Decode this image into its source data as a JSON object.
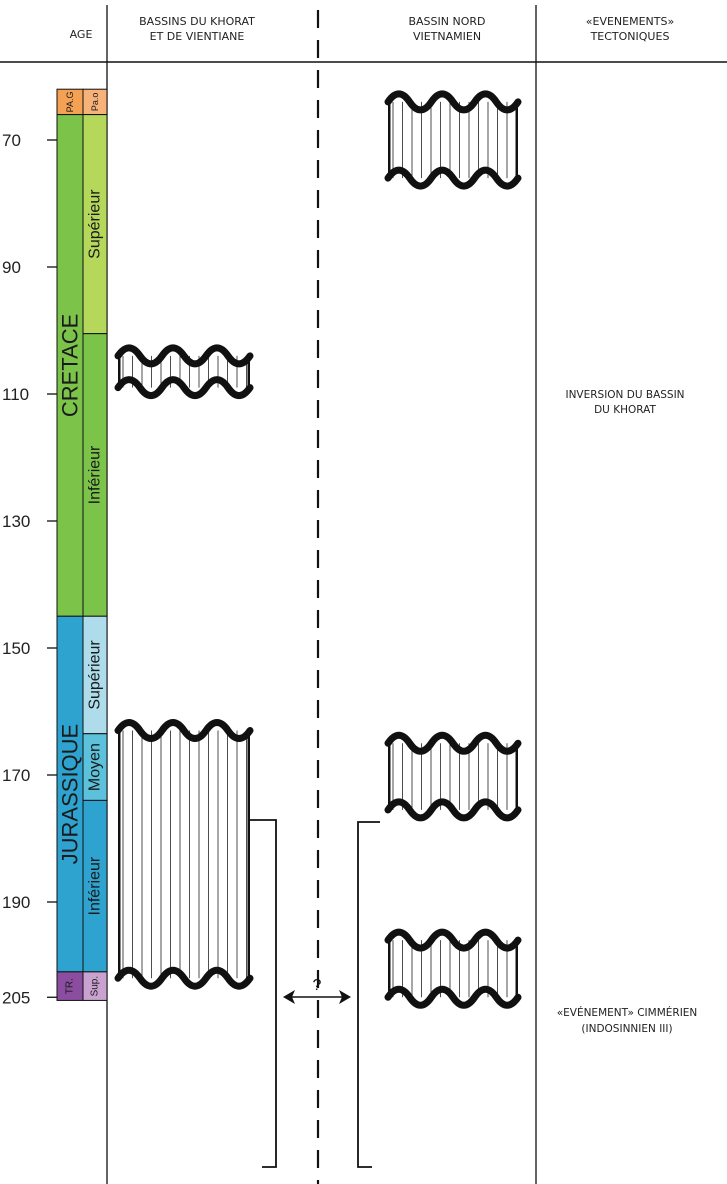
{
  "headers": {
    "age": "AGE",
    "khorat_line1": "BASSINS DU KHORAT",
    "khorat_line2": "ET DE VIENTIANE",
    "nord_line1": "BASSIN NORD",
    "nord_line2": "VIETNAMIEN",
    "events_line1": "«EVENEMENTS»",
    "events_line2": "TECTONIQUES"
  },
  "age_ticks": [
    "70",
    "90",
    "110",
    "130",
    "150",
    "170",
    "190",
    "205"
  ],
  "periods": [
    {
      "label": "PA.G",
      "from": 62,
      "to": 66,
      "color": "#f5a154"
    },
    {
      "label": "CRETACE",
      "from": 66,
      "to": 145,
      "color": "#7cc34a"
    },
    {
      "label": "JURASSIQUE",
      "from": 145,
      "to": 201,
      "color": "#2ea3d0"
    },
    {
      "label": "TR.",
      "from": 201,
      "to": 205.5,
      "color": "#8b4da0"
    }
  ],
  "epochs": [
    {
      "label": "Pa.o",
      "from": 62,
      "to": 66,
      "color": "#f7b27a"
    },
    {
      "label": "Supérieur",
      "from": 66,
      "to": 100.5,
      "color": "#b5d85a"
    },
    {
      "label": "Inférieur",
      "from": 100.5,
      "to": 145,
      "color": "#7cc34a"
    },
    {
      "label": "Supérieur",
      "from": 145,
      "to": 163.5,
      "color": "#aedcea"
    },
    {
      "label": "Moyen",
      "from": 163.5,
      "to": 174,
      "color": "#5cc2dc"
    },
    {
      "label": "Inférieur",
      "from": 174,
      "to": 201,
      "color": "#2ea3d0"
    },
    {
      "label": "Sup.",
      "from": 201,
      "to": 205.5,
      "color": "#c9a2cf"
    }
  ],
  "gaps": {
    "khorat": [
      {
        "from": 104,
        "to": 109
      },
      {
        "from": 163,
        "to": 202
      }
    ],
    "nord": [
      {
        "from": 64,
        "to": 76
      },
      {
        "from": 165,
        "to": 175.5
      },
      {
        "from": 196,
        "to": 205
      }
    ]
  },
  "uncertain_marker": "?",
  "events": {
    "inversion_line1": "INVERSION DU BASSIN",
    "inversion_line2": "DU KHORAT",
    "cimmerien_line1": "«EVÉNEMENT» CIMMÉRIEN",
    "cimmerien_line2": "(INDOSINNIEN III)"
  }
}
